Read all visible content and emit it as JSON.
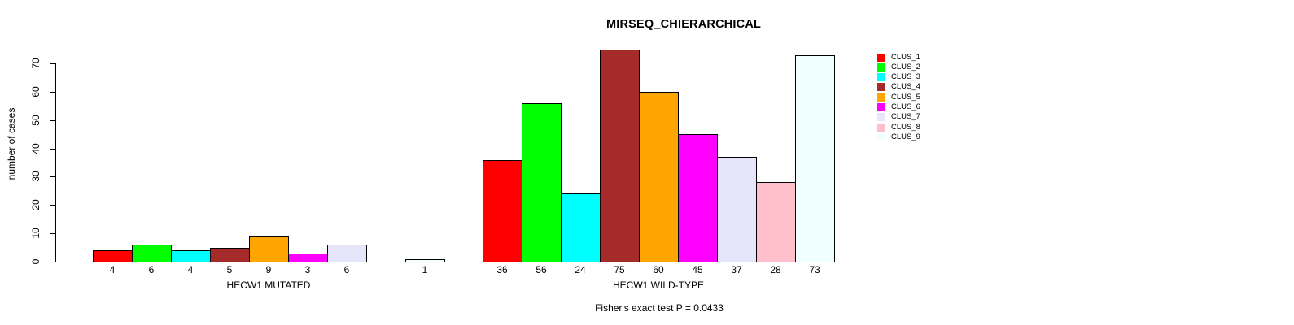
{
  "chart_data": {
    "type": "bar",
    "title": "MIRSEQ_CHIERARCHICAL",
    "ylabel": "number of cases",
    "annotation": "Fisher's exact test P = 0.0433",
    "ylim": [
      0,
      75
    ],
    "yticks": [
      0,
      10,
      20,
      30,
      40,
      50,
      60,
      70
    ],
    "grid": false,
    "legend_position": "right-outside",
    "bar_value_labels": true,
    "clusters": [
      "CLUS_1",
      "CLUS_2",
      "CLUS_3",
      "CLUS_4",
      "CLUS_5",
      "CLUS_6",
      "CLUS_7",
      "CLUS_8",
      "CLUS_9"
    ],
    "colors": [
      "#FF0000",
      "#00FF00",
      "#00FFFF",
      "#A52A2A",
      "#FFA500",
      "#FF00FF",
      "#E6E6FA",
      "#FFC0CB",
      "#F0FFFF"
    ],
    "groups": [
      {
        "label": "HECW1 MUTATED",
        "values": [
          4,
          6,
          4,
          5,
          9,
          3,
          6,
          0,
          1
        ]
      },
      {
        "label": "HECW1 WILD-TYPE",
        "values": [
          36,
          56,
          24,
          75,
          60,
          45,
          37,
          28,
          73
        ]
      }
    ]
  }
}
